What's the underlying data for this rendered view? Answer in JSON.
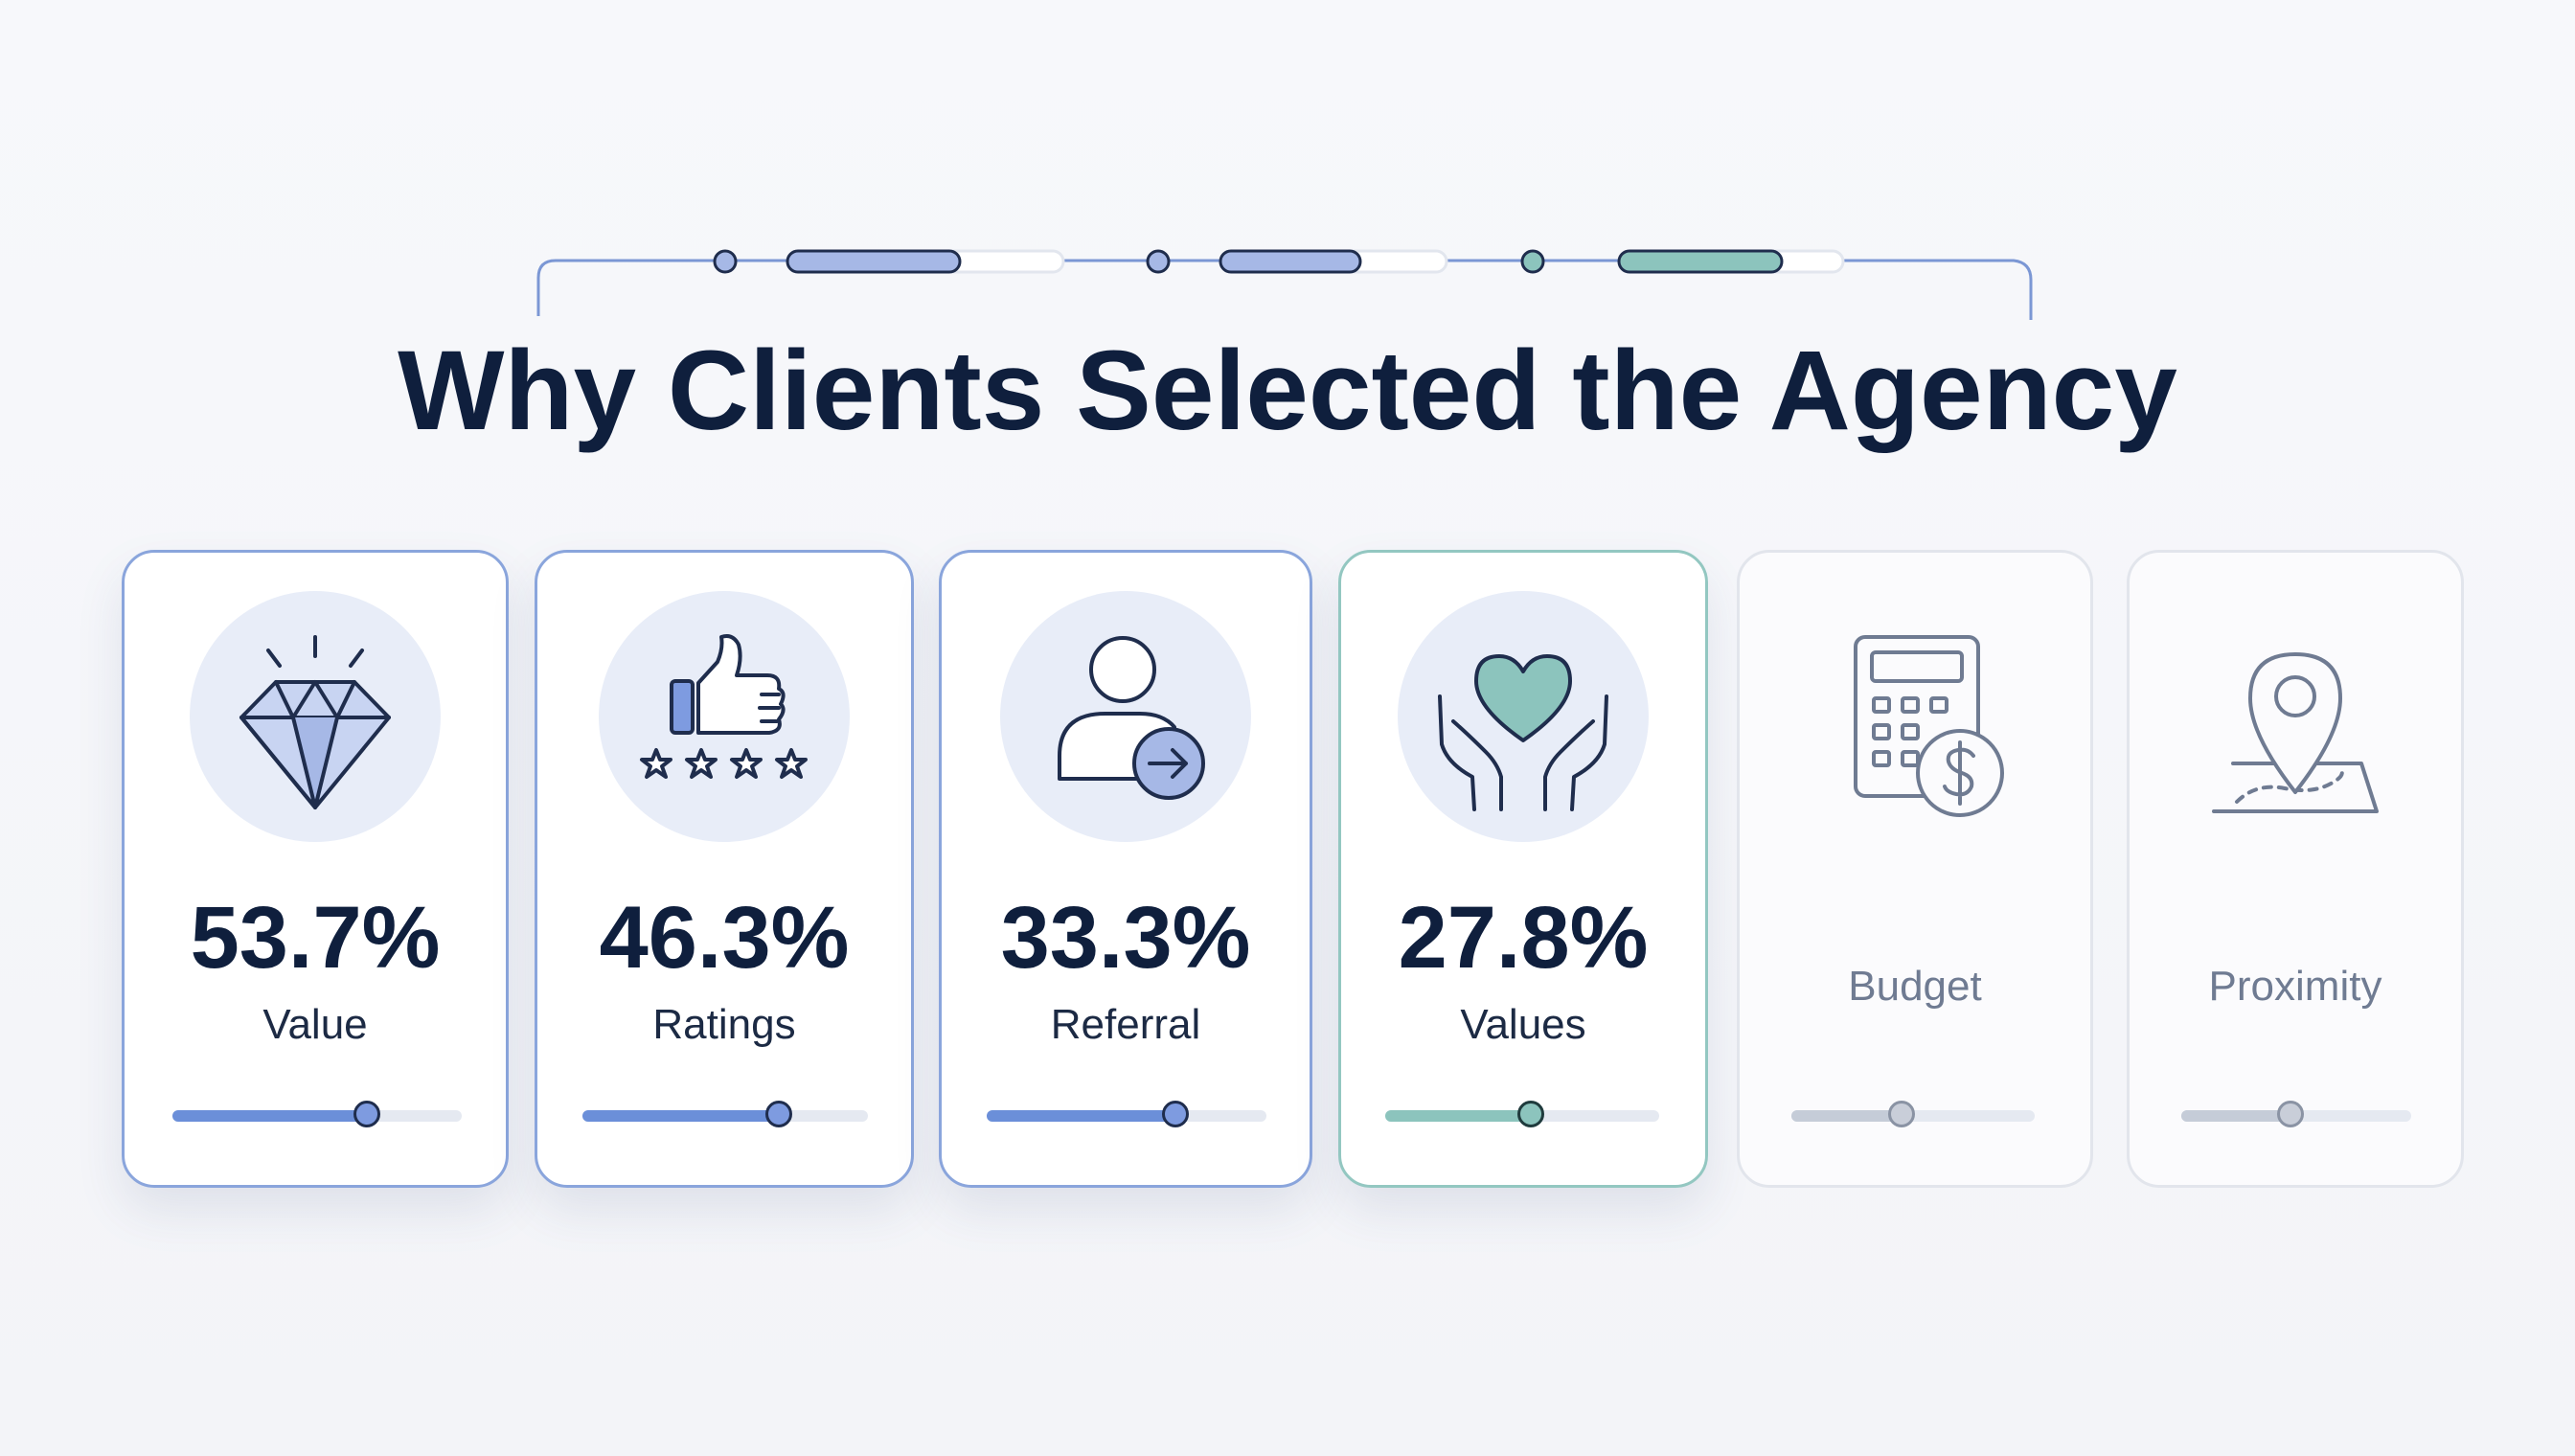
{
  "title": "Why Clients Selected the Agency",
  "colors": {
    "accent_blue": "#6b8fd9",
    "accent_teal": "#8cc4bd",
    "muted_gray": "#c5ccd8",
    "title_navy": "#0f1f3d"
  },
  "chart_data": {
    "type": "bar",
    "title": "Why Clients Selected the Agency",
    "categories": [
      "Value",
      "Ratings",
      "Referral",
      "Values",
      "Budget",
      "Proximity"
    ],
    "values": [
      53.7,
      46.3,
      33.3,
      27.8,
      null,
      null
    ],
    "unit": "%",
    "series": [
      {
        "values": [
          53.7,
          46.3,
          33.3,
          27.8,
          null,
          null
        ]
      }
    ]
  },
  "cards": [
    {
      "label": "Value",
      "value": "53.7%",
      "icon": "diamond-icon",
      "slider_fraction": 0.67,
      "style": "blue"
    },
    {
      "label": "Ratings",
      "value": "46.3%",
      "icon": "thumbs-up-stars-icon",
      "slider_fraction": 0.69,
      "style": "blue"
    },
    {
      "label": "Referral",
      "value": "33.3%",
      "icon": "person-arrow-icon",
      "slider_fraction": 0.68,
      "style": "blue"
    },
    {
      "label": "Values",
      "value": "27.8%",
      "icon": "heart-hands-icon",
      "slider_fraction": 0.53,
      "style": "teal"
    },
    {
      "label": "Budget",
      "value": "",
      "icon": "calculator-dollar-icon",
      "slider_fraction": 0.45,
      "style": "muted"
    },
    {
      "label": "Proximity",
      "value": "",
      "icon": "map-pin-icon",
      "slider_fraction": 0.48,
      "style": "muted"
    }
  ]
}
